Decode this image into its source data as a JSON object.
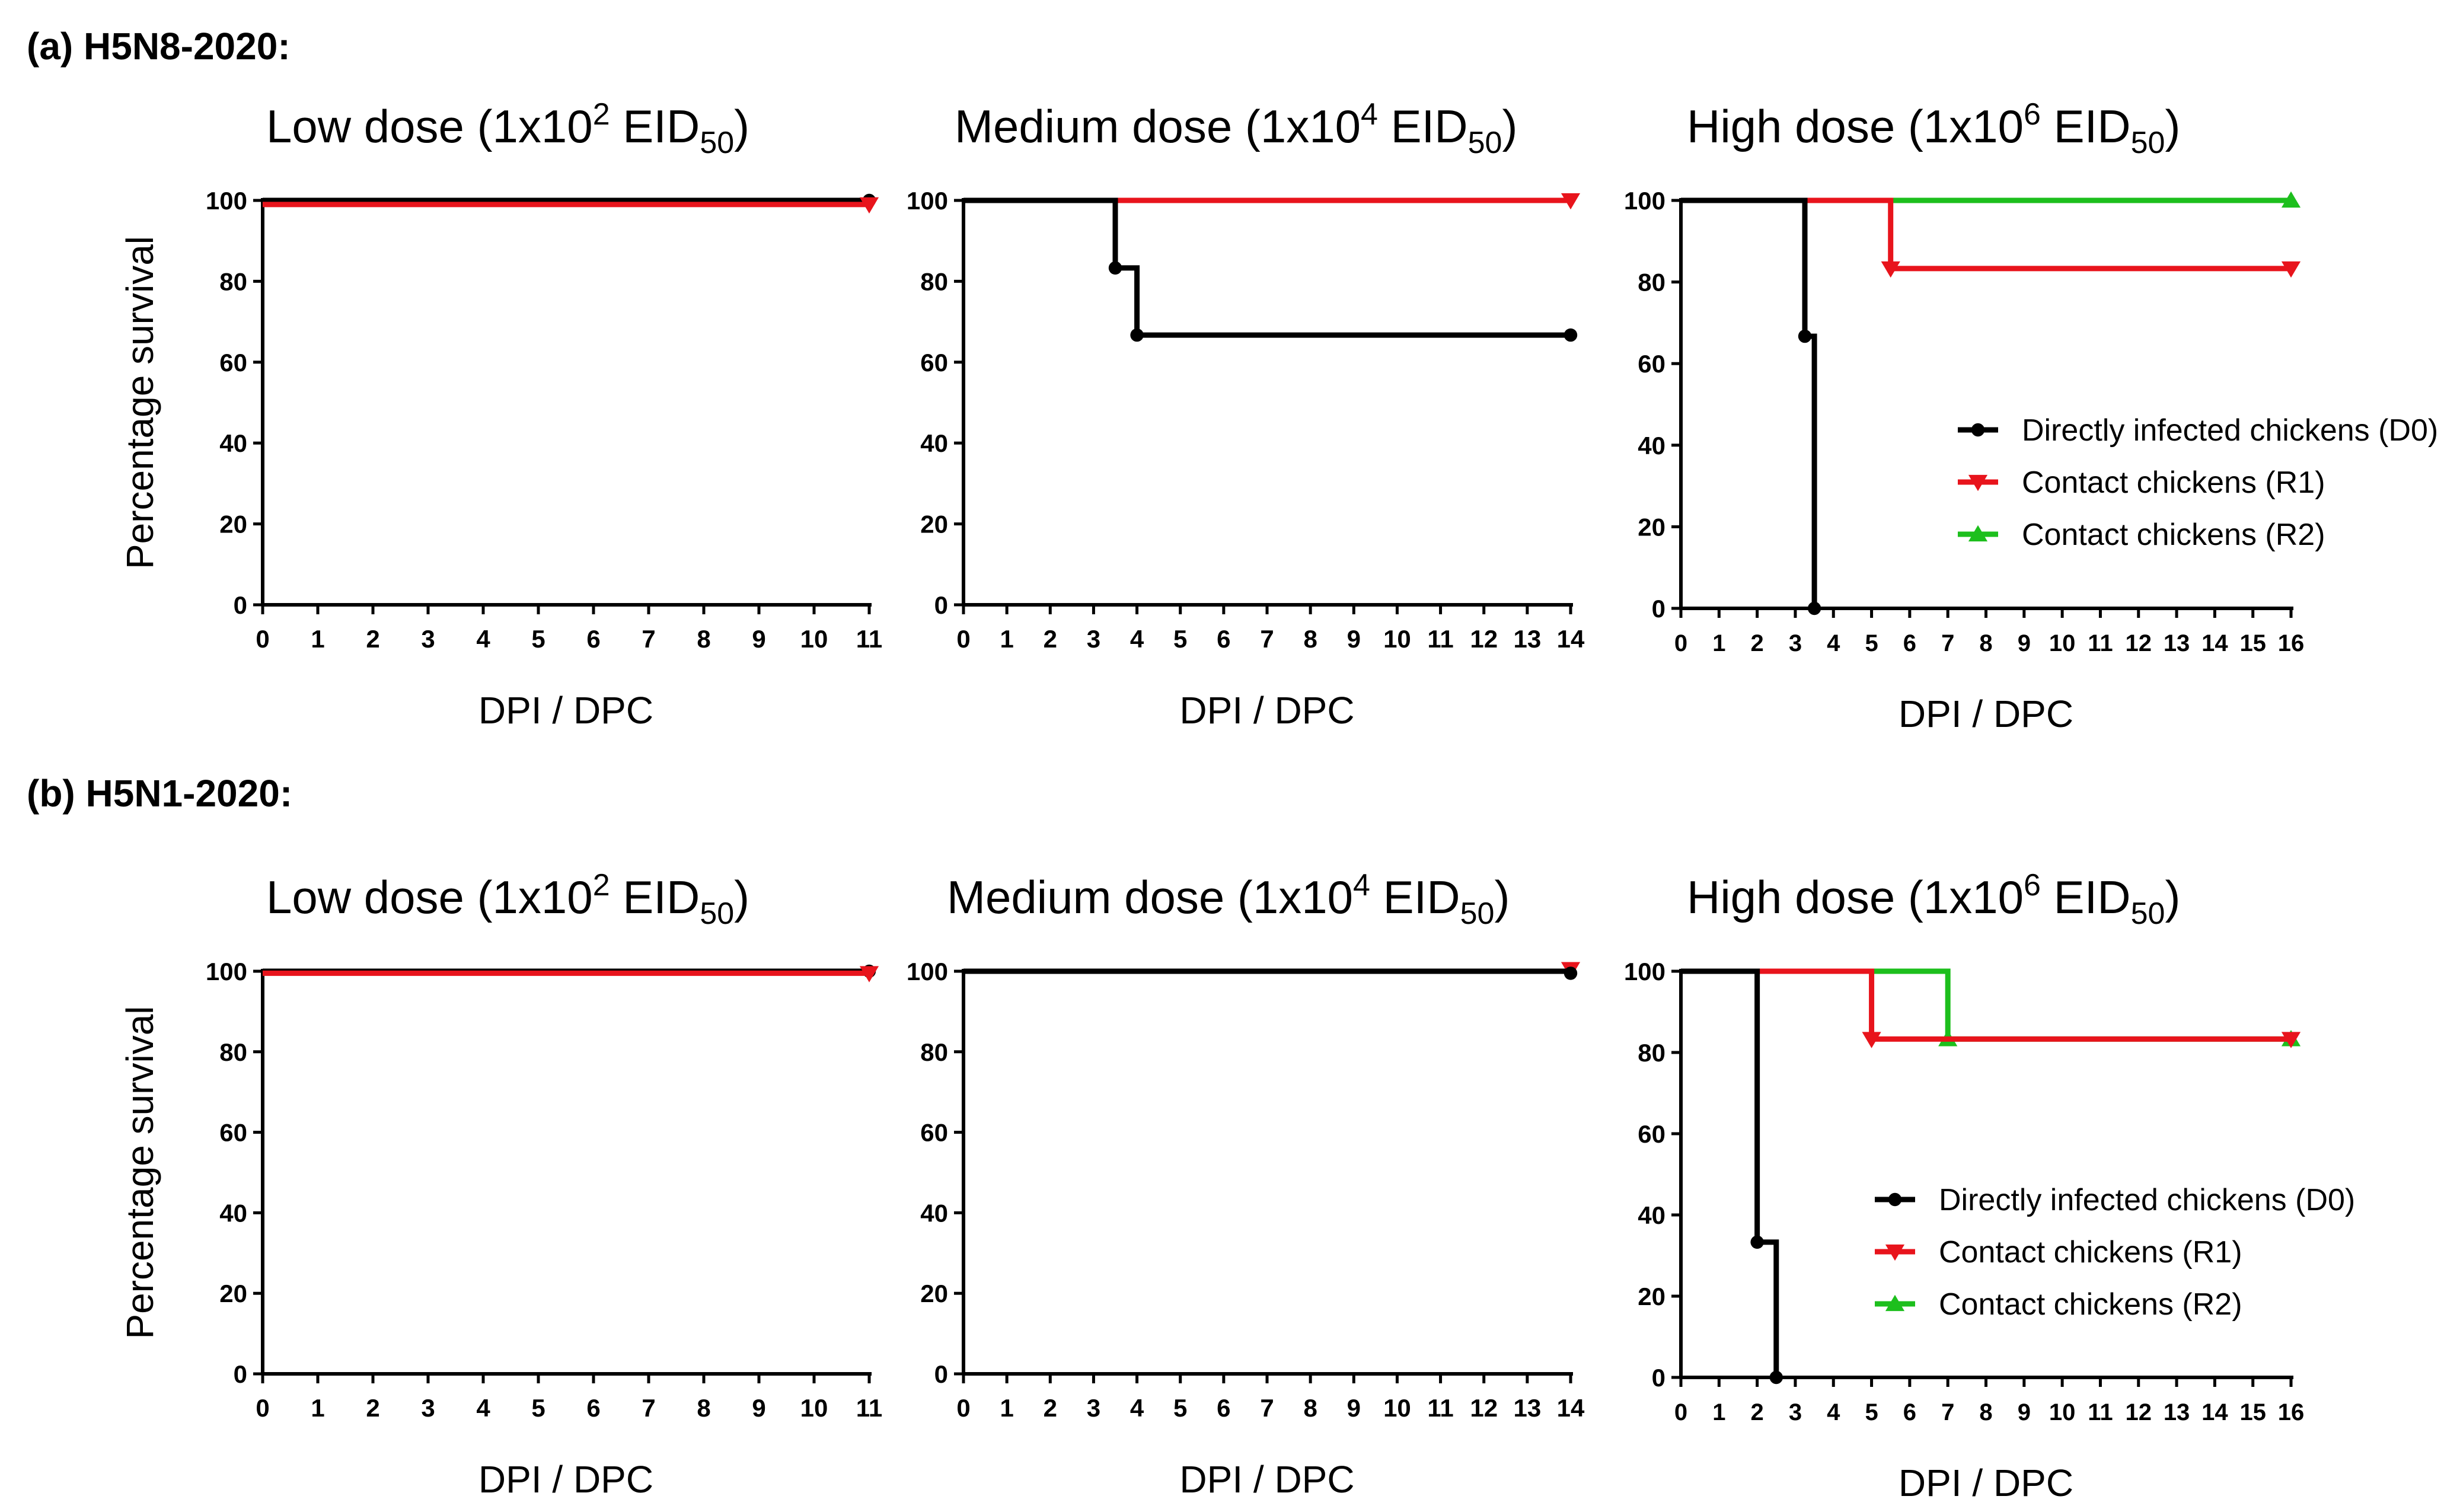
{
  "panels": [
    {
      "label": "(a) H5N8-2020:"
    },
    {
      "label": "(b) H5N1-2020:"
    }
  ],
  "colors": {
    "D0": "#000000",
    "R1": "#e8141c",
    "R2": "#1dbf1d"
  },
  "chart_data": [
    {
      "panel": 0,
      "type": "line",
      "title": {
        "pre": "Low dose (1x10",
        "sup": "2",
        "mid": " EID",
        "sub": "50",
        "post": ")"
      },
      "xlabel": "DPI / DPC",
      "ylabel": "Percentage survival",
      "xlim": [
        0,
        11
      ],
      "ylim": [
        0,
        100
      ],
      "xticks": [
        0,
        1,
        2,
        3,
        4,
        5,
        6,
        7,
        8,
        9,
        10,
        11
      ],
      "yticks": [
        0,
        20,
        40,
        60,
        80,
        100
      ],
      "legend": null,
      "series": [
        {
          "key": "D0",
          "marker": "circle",
          "x": [
            0,
            11
          ],
          "y": [
            100,
            100
          ],
          "points": [
            [
              11,
              100
            ]
          ]
        },
        {
          "key": "R1",
          "marker": "triangle-down",
          "x": [
            0,
            11
          ],
          "y": [
            99,
            99
          ],
          "points": [
            [
              11,
              99
            ]
          ]
        }
      ]
    },
    {
      "panel": 0,
      "type": "line",
      "title": {
        "pre": "Medium dose (1x10",
        "sup": "4",
        "mid": " EID",
        "sub": "50",
        "post": ")"
      },
      "xlabel": "DPI / DPC",
      "ylabel": "",
      "xlim": [
        0,
        14
      ],
      "ylim": [
        0,
        100
      ],
      "xticks": [
        0,
        1,
        2,
        3,
        4,
        5,
        6,
        7,
        8,
        9,
        10,
        11,
        12,
        13,
        14
      ],
      "yticks": [
        0,
        20,
        40,
        60,
        80,
        100
      ],
      "legend": null,
      "series": [
        {
          "key": "R1",
          "marker": "triangle-down",
          "x": [
            3.5,
            14
          ],
          "y": [
            100,
            100
          ],
          "points": [
            [
              14,
              100
            ]
          ]
        },
        {
          "key": "D0",
          "marker": "circle",
          "x": [
            0,
            3.5,
            3.5,
            4,
            4,
            14
          ],
          "y": [
            100,
            100,
            83.3,
            83.3,
            66.7,
            66.7
          ],
          "points": [
            [
              3.5,
              83.3
            ],
            [
              4,
              66.7
            ],
            [
              14,
              66.7
            ]
          ]
        }
      ]
    },
    {
      "panel": 0,
      "type": "line",
      "title": {
        "pre": "High dose (1x10",
        "sup": "6",
        "mid": " EID",
        "sub": "50",
        "post": ")"
      },
      "xlabel": "DPI / DPC",
      "ylabel": "",
      "xlim": [
        0,
        16
      ],
      "ylim": [
        0,
        100
      ],
      "xticks": [
        0,
        1,
        2,
        3,
        4,
        5,
        6,
        7,
        8,
        9,
        10,
        11,
        12,
        13,
        14,
        15,
        16
      ],
      "yticks": [
        0,
        20,
        40,
        60,
        80,
        100
      ],
      "legend": [
        {
          "key": "D0",
          "marker": "circle",
          "label": "Directly infected chickens (D0)"
        },
        {
          "key": "R1",
          "marker": "triangle-down",
          "label": "Contact chickens (R1)"
        },
        {
          "key": "R2",
          "marker": "triangle-up",
          "label": "Contact chickens (R2)"
        }
      ],
      "series": [
        {
          "key": "R2",
          "marker": "triangle-up",
          "x": [
            3.2,
            16
          ],
          "y": [
            100,
            100
          ],
          "points": [
            [
              16,
              100
            ]
          ]
        },
        {
          "key": "R1",
          "marker": "triangle-down",
          "x": [
            3.2,
            5.5,
            5.5,
            16
          ],
          "y": [
            100,
            100,
            83.3,
            83.3
          ],
          "points": [
            [
              5.5,
              83.3
            ],
            [
              16,
              83.3
            ]
          ]
        },
        {
          "key": "D0",
          "marker": "circle",
          "x": [
            0,
            3.25,
            3.25,
            3.5,
            3.5
          ],
          "y": [
            100,
            100,
            66.7,
            66.7,
            0
          ],
          "points": [
            [
              3.25,
              66.7
            ],
            [
              3.5,
              0
            ]
          ]
        }
      ]
    },
    {
      "panel": 1,
      "type": "line",
      "title": {
        "pre": "Low dose (1x10",
        "sup": "2",
        "mid": " EID",
        "sub": "50",
        "post": ")"
      },
      "xlabel": "DPI / DPC",
      "ylabel": "Percentage survival",
      "xlim": [
        0,
        11
      ],
      "ylim": [
        0,
        100
      ],
      "xticks": [
        0,
        1,
        2,
        3,
        4,
        5,
        6,
        7,
        8,
        9,
        10,
        11
      ],
      "yticks": [
        0,
        20,
        40,
        60,
        80,
        100
      ],
      "legend": null,
      "series": [
        {
          "key": "D0",
          "marker": "circle",
          "x": [
            0,
            11
          ],
          "y": [
            100,
            100
          ],
          "points": [
            [
              11,
              100
            ]
          ]
        },
        {
          "key": "R1",
          "marker": "triangle-down",
          "x": [
            0,
            11
          ],
          "y": [
            99.5,
            99.5
          ],
          "points": [
            [
              11,
              99.5
            ]
          ]
        }
      ]
    },
    {
      "panel": 1,
      "type": "line",
      "title": {
        "pre": "Medium dose (1x10",
        "sup": "4",
        "mid": " EID",
        "sub": "50",
        "post": ")"
      },
      "xlabel": "DPI / DPC",
      "ylabel": "",
      "xlim": [
        0,
        14
      ],
      "ylim": [
        0,
        100
      ],
      "xticks": [
        0,
        1,
        2,
        3,
        4,
        5,
        6,
        7,
        8,
        9,
        10,
        11,
        12,
        13,
        14
      ],
      "yticks": [
        0,
        20,
        40,
        60,
        80,
        100
      ],
      "legend": null,
      "series": [
        {
          "key": "R1",
          "marker": "triangle-down",
          "x": [
            0,
            14
          ],
          "y": [
            100,
            100
          ],
          "points": [
            [
              14,
              100.5
            ]
          ]
        },
        {
          "key": "D0",
          "marker": "circle",
          "x": [
            0,
            14
          ],
          "y": [
            100,
            100
          ],
          "points": [
            [
              14,
              99.5
            ]
          ]
        }
      ]
    },
    {
      "panel": 1,
      "type": "line",
      "title": {
        "pre": "High dose (1x10",
        "sup": "6",
        "mid": " EID",
        "sub": "50",
        "post": ")"
      },
      "xlabel": "DPI / DPC",
      "ylabel": "",
      "xlim": [
        0,
        16
      ],
      "ylim": [
        0,
        100
      ],
      "xticks": [
        0,
        1,
        2,
        3,
        4,
        5,
        6,
        7,
        8,
        9,
        10,
        11,
        12,
        13,
        14,
        15,
        16
      ],
      "yticks": [
        0,
        20,
        40,
        60,
        80,
        100
      ],
      "legend": [
        {
          "key": "D0",
          "marker": "circle",
          "label": "Directly infected chickens (D0)"
        },
        {
          "key": "R1",
          "marker": "triangle-down",
          "label": "Contact chickens (R1)"
        },
        {
          "key": "R2",
          "marker": "triangle-up",
          "label": "Contact chickens (R2)"
        }
      ],
      "series": [
        {
          "key": "R2",
          "marker": "triangle-up",
          "x": [
            0,
            7,
            7,
            16
          ],
          "y": [
            100,
            100,
            83.3,
            83.3
          ],
          "points": [
            [
              7,
              83.3
            ],
            [
              16,
              83.3
            ]
          ]
        },
        {
          "key": "R1",
          "marker": "triangle-down",
          "x": [
            0,
            5,
            5,
            16
          ],
          "y": [
            100,
            100,
            83.3,
            83.3
          ],
          "points": [
            [
              5,
              83.3
            ],
            [
              16,
              83.3
            ]
          ]
        },
        {
          "key": "D0",
          "marker": "circle",
          "x": [
            0,
            2,
            2,
            2.5,
            2.5
          ],
          "y": [
            100,
            100,
            33.3,
            33.3,
            0
          ],
          "points": [
            [
              2,
              33.3
            ],
            [
              2.5,
              0
            ]
          ]
        }
      ]
    }
  ]
}
